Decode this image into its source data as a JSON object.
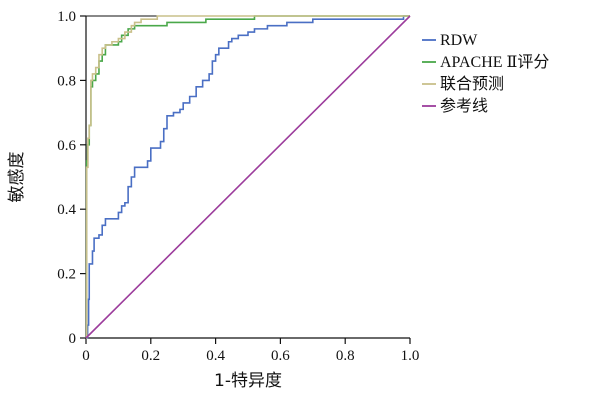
{
  "chart_data": {
    "type": "line",
    "title": "",
    "xlabel": "1-特异度",
    "ylabel": "敏感度",
    "xlim": [
      0,
      1
    ],
    "ylim": [
      0,
      1
    ],
    "x_ticks": [
      "0",
      "0.2",
      "0.4",
      "0.6",
      "0.8",
      "1.0"
    ],
    "y_ticks": [
      "0",
      "0.2",
      "0.4",
      "0.6",
      "0.8",
      "1.0"
    ],
    "grid": false,
    "legend_position": "right",
    "series": [
      {
        "name": "RDW",
        "color": "#4a6fc4",
        "points": [
          [
            0,
            0
          ],
          [
            0.005,
            0.04
          ],
          [
            0.008,
            0.12
          ],
          [
            0.01,
            0.23
          ],
          [
            0.02,
            0.27
          ],
          [
            0.025,
            0.31
          ],
          [
            0.04,
            0.32
          ],
          [
            0.05,
            0.35
          ],
          [
            0.06,
            0.37
          ],
          [
            0.08,
            0.37
          ],
          [
            0.1,
            0.39
          ],
          [
            0.11,
            0.41
          ],
          [
            0.12,
            0.42
          ],
          [
            0.13,
            0.47
          ],
          [
            0.14,
            0.5
          ],
          [
            0.15,
            0.53
          ],
          [
            0.16,
            0.53
          ],
          [
            0.19,
            0.55
          ],
          [
            0.2,
            0.59
          ],
          [
            0.23,
            0.61
          ],
          [
            0.24,
            0.65
          ],
          [
            0.25,
            0.69
          ],
          [
            0.27,
            0.7
          ],
          [
            0.29,
            0.71
          ],
          [
            0.3,
            0.73
          ],
          [
            0.32,
            0.75
          ],
          [
            0.34,
            0.78
          ],
          [
            0.36,
            0.8
          ],
          [
            0.38,
            0.82
          ],
          [
            0.39,
            0.86
          ],
          [
            0.4,
            0.88
          ],
          [
            0.41,
            0.9
          ],
          [
            0.44,
            0.92
          ],
          [
            0.45,
            0.93
          ],
          [
            0.47,
            0.94
          ],
          [
            0.5,
            0.95
          ],
          [
            0.52,
            0.96
          ],
          [
            0.56,
            0.97
          ],
          [
            0.6,
            0.97
          ],
          [
            0.62,
            0.98
          ],
          [
            0.64,
            0.98
          ],
          [
            0.68,
            0.98
          ],
          [
            0.7,
            0.99
          ],
          [
            0.75,
            0.99
          ],
          [
            0.8,
            0.99
          ],
          [
            0.85,
            0.99
          ],
          [
            0.9,
            0.99
          ],
          [
            0.97,
            0.99
          ],
          [
            0.98,
            1.0
          ],
          [
            1.0,
            1.0
          ]
        ]
      },
      {
        "name": "APACHE Ⅱ评分",
        "color": "#4aa84a",
        "points": [
          [
            0,
            0
          ],
          [
            0.002,
            0.55
          ],
          [
            0.005,
            0.6
          ],
          [
            0.01,
            0.66
          ],
          [
            0.015,
            0.78
          ],
          [
            0.02,
            0.8
          ],
          [
            0.03,
            0.82
          ],
          [
            0.04,
            0.86
          ],
          [
            0.05,
            0.88
          ],
          [
            0.06,
            0.91
          ],
          [
            0.09,
            0.91
          ],
          [
            0.1,
            0.92
          ],
          [
            0.11,
            0.94
          ],
          [
            0.13,
            0.96
          ],
          [
            0.15,
            0.97
          ],
          [
            0.2,
            0.97
          ],
          [
            0.25,
            0.98
          ],
          [
            0.3,
            0.98
          ],
          [
            0.34,
            0.98
          ],
          [
            0.37,
            0.99
          ],
          [
            0.48,
            0.99
          ],
          [
            0.52,
            1.0
          ],
          [
            0.6,
            1.0
          ],
          [
            0.7,
            1.0
          ],
          [
            0.8,
            1.0
          ],
          [
            1.0,
            1.0
          ]
        ]
      },
      {
        "name": "联合预测",
        "color": "#c9c08a",
        "points": [
          [
            0,
            0
          ],
          [
            0.002,
            0.53
          ],
          [
            0.006,
            0.62
          ],
          [
            0.01,
            0.66
          ],
          [
            0.015,
            0.8
          ],
          [
            0.02,
            0.82
          ],
          [
            0.03,
            0.84
          ],
          [
            0.04,
            0.88
          ],
          [
            0.05,
            0.9
          ],
          [
            0.06,
            0.91
          ],
          [
            0.08,
            0.92
          ],
          [
            0.1,
            0.93
          ],
          [
            0.12,
            0.95
          ],
          [
            0.14,
            0.97
          ],
          [
            0.15,
            0.98
          ],
          [
            0.17,
            0.99
          ],
          [
            0.2,
            0.99
          ],
          [
            0.22,
            1.0
          ],
          [
            0.3,
            1.0
          ],
          [
            0.5,
            1.0
          ],
          [
            0.7,
            1.0
          ],
          [
            1.0,
            1.0
          ]
        ]
      },
      {
        "name": "参考线",
        "color": "#9c3c9c",
        "points": [
          [
            0,
            0
          ],
          [
            1,
            1
          ]
        ]
      }
    ]
  }
}
